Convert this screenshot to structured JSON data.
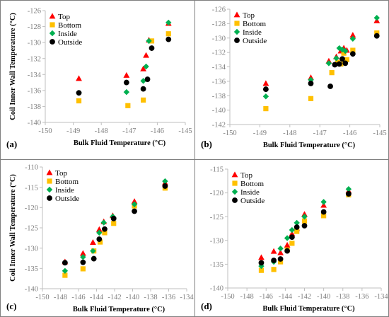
{
  "legend_labels": [
    "Top",
    "Bottom",
    "Inside",
    "Outside"
  ],
  "colors": {
    "Top": "#ff0000",
    "Bottom": "#ffc000",
    "Inside": "#00b050",
    "Outside": "#000000"
  },
  "chart_data": [
    {
      "type": "scatter",
      "panel_label": "(a)",
      "xlabel": "Bulk Fluid Temperature (°C)",
      "ylabel": "Coil Inner Wall Temperature (°C)",
      "xlim": [
        -150,
        -145
      ],
      "ylim": [
        -140,
        -126
      ],
      "xticks": [
        -150,
        -149,
        -148,
        -147,
        -146,
        -145
      ],
      "yticks": [
        -140,
        -138,
        -136,
        -134,
        -132,
        -130,
        -128,
        -126
      ],
      "grid": false,
      "legend_position": "top-left",
      "series": [
        {
          "name": "Top",
          "x": [
            -148.8,
            -147.1,
            -146.5,
            -146.4,
            -146.3,
            -145.6
          ],
          "y": [
            -134.5,
            -134.1,
            -133.3,
            -131.6,
            -129.7,
            -127.6
          ]
        },
        {
          "name": "Bottom",
          "x": [
            -148.8,
            -147.05,
            -146.5,
            -146.2,
            -145.6
          ],
          "y": [
            -137.3,
            -137.9,
            -137.2,
            -129.8,
            -128.9
          ]
        },
        {
          "name": "Inside",
          "x": [
            -148.8,
            -147.1,
            -146.5,
            -146.4,
            -146.3,
            -145.6
          ],
          "y": [
            -136.3,
            -136.2,
            -134.8,
            -133.0,
            -129.8,
            -127.5
          ]
        },
        {
          "name": "Outside",
          "x": [
            -148.8,
            -147.1,
            -146.5,
            -146.35,
            -146.2,
            -145.6
          ],
          "y": [
            -136.3,
            -135.0,
            -135.8,
            -134.6,
            -130.7,
            -129.6
          ]
        }
      ]
    },
    {
      "type": "scatter",
      "panel_label": "(b)",
      "xlabel": "Bulk Fluid Temperature (°C)",
      "ylabel": "",
      "xlim": [
        -150,
        -145
      ],
      "ylim": [
        -142,
        -126
      ],
      "xticks": [
        -150,
        -149,
        -148,
        -147,
        -146,
        -145
      ],
      "yticks": [
        -142,
        -140,
        -138,
        -136,
        -134,
        -132,
        -130,
        -128,
        -126
      ],
      "grid": false,
      "legend_position": "top-left",
      "series": [
        {
          "name": "Top",
          "x": [
            -148.8,
            -147.3,
            -146.7,
            -146.45,
            -146.3,
            -146.2,
            -146.1,
            -145.9,
            -145.1
          ],
          "y": [
            -136.3,
            -135.5,
            -133.2,
            -132.6,
            -131.8,
            -131.4,
            -131.7,
            -129.6,
            -127.6
          ]
        },
        {
          "name": "Bottom",
          "x": [
            -148.8,
            -147.3,
            -146.6,
            -146.4,
            -146.3,
            -146.2,
            -146.1,
            -145.9,
            -145.1
          ],
          "y": [
            -139.8,
            -138.4,
            -134.8,
            -133.4,
            -133.6,
            -132.1,
            -133.0,
            -131.7,
            -129.3
          ]
        },
        {
          "name": "Inside",
          "x": [
            -148.8,
            -147.3,
            -146.7,
            -146.45,
            -146.35,
            -146.25,
            -146.15,
            -145.9,
            -145.1
          ],
          "y": [
            -138.1,
            -135.8,
            -133.5,
            -132.8,
            -131.4,
            -131.6,
            -131.8,
            -130.1,
            -127.2
          ]
        },
        {
          "name": "Outside",
          "x": [
            -148.8,
            -147.3,
            -146.65,
            -146.5,
            -146.35,
            -146.25,
            -146.15,
            -145.9,
            -145.1
          ],
          "y": [
            -137.1,
            -136.3,
            -136.7,
            -133.7,
            -133.6,
            -132.9,
            -133.5,
            -132.2,
            -129.7
          ]
        }
      ]
    },
    {
      "type": "scatter",
      "panel_label": "(c)",
      "xlabel": "Bulk Fluid Temperature (°C)",
      "ylabel": "Coil Inner Wall Temperature (°C)",
      "xlim": [
        -150,
        -134
      ],
      "ylim": [
        -140,
        -110
      ],
      "xticks": [
        -150,
        -148,
        -146,
        -144,
        -142,
        -140,
        -138,
        -136,
        -134
      ],
      "yticks": [
        -140,
        -135,
        -130,
        -125,
        -120,
        -115,
        -110
      ],
      "grid": false,
      "legend_position": "top-left",
      "series": [
        {
          "name": "Top",
          "x": [
            -147.5,
            -145.5,
            -144.4,
            -143.7,
            -143.2,
            -142.2,
            -139.8,
            -136.4
          ],
          "y": [
            -133.4,
            -131.3,
            -128.6,
            -125.4,
            -123.5,
            -122.0,
            -118.5,
            -113.9
          ]
        },
        {
          "name": "Bottom",
          "x": [
            -147.5,
            -145.5,
            -144.3,
            -143.6,
            -143.1,
            -142.1,
            -139.8,
            -136.4
          ],
          "y": [
            -136.7,
            -135.1,
            -130.7,
            -128.5,
            -126.2,
            -123.9,
            -119.6,
            -115.2
          ]
        },
        {
          "name": "Inside",
          "x": [
            -147.5,
            -145.5,
            -144.4,
            -143.7,
            -143.2,
            -142.2,
            -139.8,
            -136.4
          ],
          "y": [
            -135.6,
            -132.2,
            -130.7,
            -126.2,
            -123.7,
            -122.2,
            -119.2,
            -113.5
          ]
        },
        {
          "name": "Outside",
          "x": [
            -147.5,
            -145.5,
            -144.3,
            -143.7,
            -143.1,
            -142.1,
            -139.8,
            -136.4
          ],
          "y": [
            -133.6,
            -133.5,
            -132.6,
            -127.8,
            -125.3,
            -122.7,
            -120.9,
            -114.7
          ]
        }
      ]
    },
    {
      "type": "scatter",
      "panel_label": "(d)",
      "xlabel": "Bulk Fluid Temperature (°C)",
      "ylabel": "",
      "xlim": [
        -150,
        -134
      ],
      "ylim": [
        -140,
        -115
      ],
      "xticks": [
        -150,
        -148,
        -146,
        -144,
        -142,
        -140,
        -138,
        -136,
        -134
      ],
      "yticks": [
        -140,
        -135,
        -130,
        -125,
        -120,
        -115
      ],
      "grid": false,
      "legend_position": "top-left",
      "series": [
        {
          "name": "Top",
          "x": [
            -146.5,
            -145.2,
            -144.5,
            -143.8,
            -143.3,
            -142.8,
            -142.0,
            -140.0,
            -137.4
          ],
          "y": [
            -133.6,
            -132.3,
            -132.6,
            -131.0,
            -128.6,
            -127.5,
            -124.5,
            -122.6,
            -119.6
          ]
        },
        {
          "name": "Bottom",
          "x": [
            -146.5,
            -145.2,
            -144.5,
            -143.8,
            -143.3,
            -142.8,
            -142.0,
            -140.0,
            -137.4
          ],
          "y": [
            -136.3,
            -136.1,
            -134.5,
            -132.0,
            -130.6,
            -128.1,
            -125.9,
            -124.8,
            -120.4
          ]
        },
        {
          "name": "Inside",
          "x": [
            -146.5,
            -145.2,
            -144.5,
            -143.8,
            -143.3,
            -142.8,
            -142.0,
            -140.0,
            -137.4
          ],
          "y": [
            -135.4,
            -134.5,
            -131.7,
            -129.5,
            -127.8,
            -126.3,
            -125.0,
            -121.9,
            -119.2
          ]
        },
        {
          "name": "Outside",
          "x": [
            -146.5,
            -145.2,
            -144.5,
            -143.8,
            -143.3,
            -142.8,
            -142.0,
            -140.0,
            -137.4
          ],
          "y": [
            -134.7,
            -134.2,
            -133.9,
            -132.2,
            -129.3,
            -127.2,
            -126.9,
            -124.0,
            -120.2
          ]
        }
      ]
    }
  ]
}
